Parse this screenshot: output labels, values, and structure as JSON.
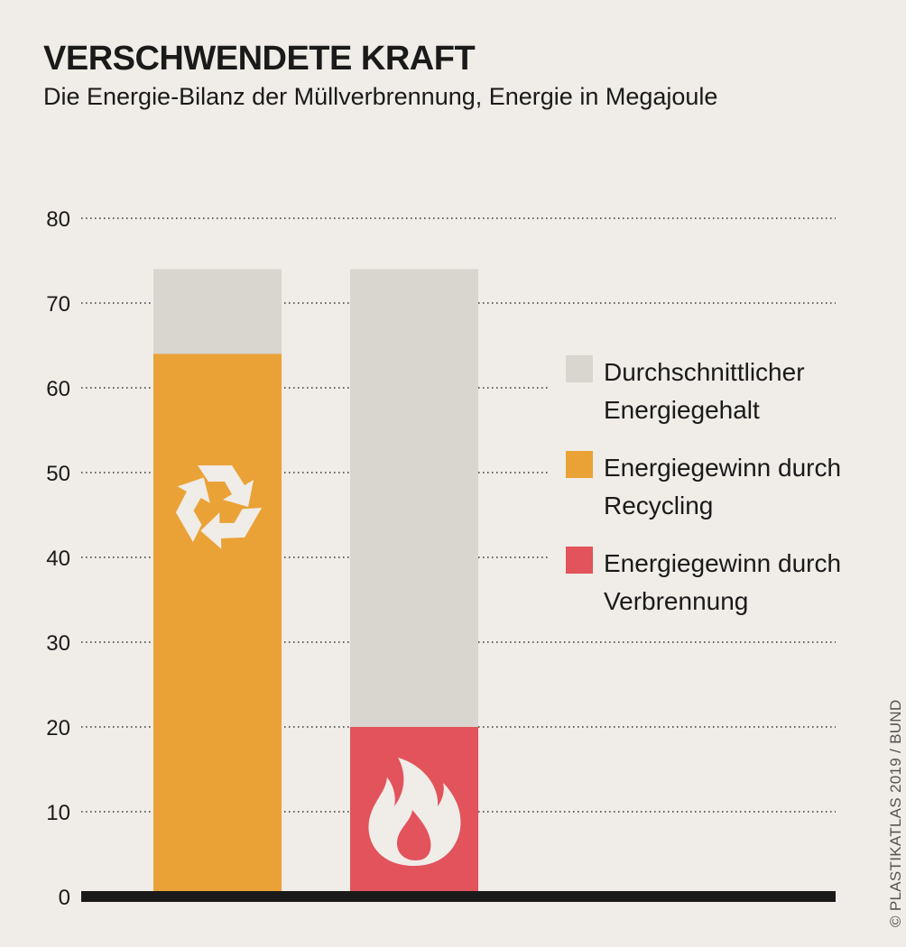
{
  "title": "VERSCHWENDETE KRAFT",
  "subtitle": "Die Energie-Bilanz der Müllverbrennung, Energie in Megajoule",
  "credit": "© PLASTIKATLAS 2019 / BUND",
  "colors": {
    "background": "#f0ece7",
    "energy_content": "#d9d5cf",
    "recycling": "#eaa236",
    "incineration": "#e2535c",
    "axis": "#1a1a1a",
    "icon": "#f0ece7"
  },
  "legend": [
    {
      "label": "Durchschnittlicher Energiegehalt",
      "color": "#d9d5cf",
      "icon": "square"
    },
    {
      "label": "Energiegewinn durch Recycling",
      "color": "#eaa236",
      "icon": "square"
    },
    {
      "label": "Energiegewinn durch Verbrennung",
      "color": "#e2535c",
      "icon": "square"
    }
  ],
  "chart_data": {
    "type": "bar",
    "stacked": false,
    "overlay": true,
    "categories": [
      "",
      ""
    ],
    "series": [
      {
        "name": "Durchschnittlicher Energiegehalt",
        "values": [
          74,
          74
        ],
        "color": "#d9d5cf"
      },
      {
        "name": "Energiegewinn durch Recycling",
        "values": [
          64,
          null
        ],
        "color": "#eaa236"
      },
      {
        "name": "Energiegewinn durch Verbrennung",
        "values": [
          null,
          20
        ],
        "color": "#e2535c"
      }
    ],
    "bar_icons": [
      "recycle-icon",
      "flame-icon"
    ],
    "yticks": [
      0,
      10,
      20,
      30,
      40,
      50,
      60,
      70,
      80
    ],
    "ylim": [
      0,
      80
    ],
    "xlabel": "",
    "ylabel": "",
    "grid": "dotted horizontal",
    "legend_position": "right"
  }
}
